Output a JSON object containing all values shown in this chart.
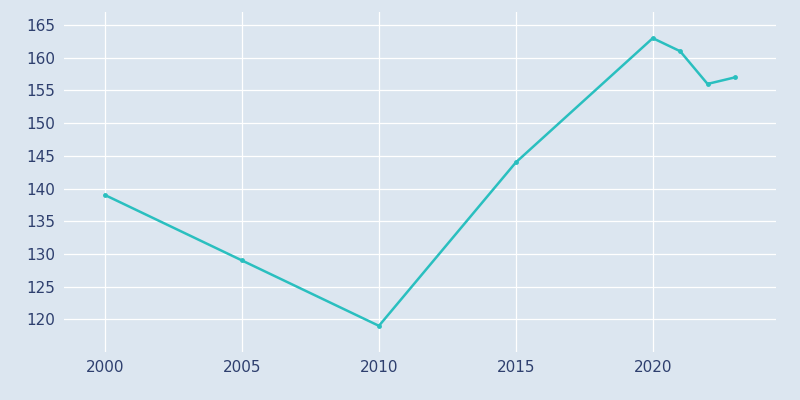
{
  "years": [
    2000,
    2005,
    2010,
    2015,
    2020,
    2021,
    2022,
    2023
  ],
  "population": [
    139,
    129,
    119,
    144,
    163,
    161,
    156,
    157
  ],
  "line_color": "#2abfbf",
  "bg_color": "#dce6f0",
  "grid_color": "#ffffff",
  "text_color": "#2e3f6e",
  "xlim": [
    1998.5,
    2024.5
  ],
  "ylim": [
    115,
    167
  ],
  "xticks": [
    2000,
    2005,
    2010,
    2015,
    2020
  ],
  "yticks": [
    120,
    125,
    130,
    135,
    140,
    145,
    150,
    155,
    160,
    165
  ],
  "tick_fontsize": 11
}
